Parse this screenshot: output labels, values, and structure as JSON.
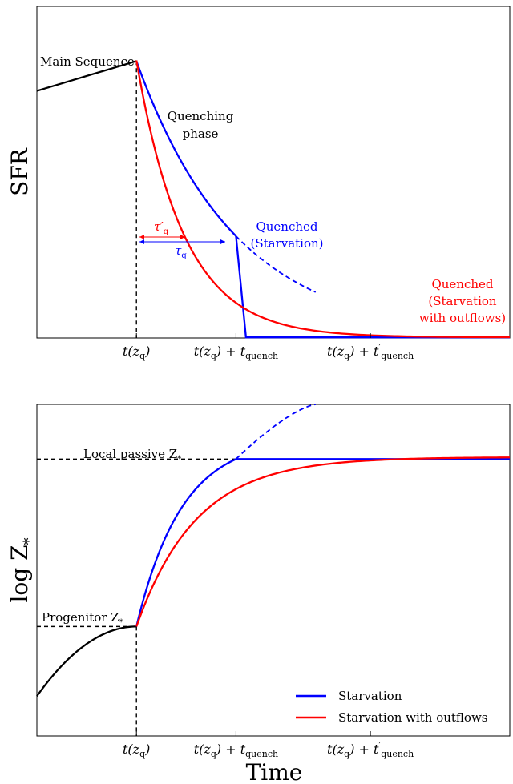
{
  "chart_data": [
    {
      "type": "line",
      "ylabel": "SFR",
      "xlabel": "",
      "x_ticks": [
        {
          "main": "t(z",
          "sub": "q",
          "post": ")",
          "extra": "",
          "extra_sub": "",
          "prime": false
        },
        {
          "main": "t(z",
          "sub": "q",
          "post": ") + t",
          "extra": "",
          "extra_sub": "quench",
          "prime": false
        },
        {
          "main": "t(z",
          "sub": "q",
          "post": ") + t",
          "extra": "′",
          "extra_sub": "quench",
          "prime": true
        }
      ],
      "annotations": {
        "main_sequence": "Main Sequence",
        "quenching_phase": [
          "Quenching",
          "phase"
        ],
        "quenched_starvation": [
          "Quenched",
          "(Starvation)"
        ],
        "quenched_outflows": [
          "Quenched",
          "(Starvation",
          "with outflows)"
        ],
        "tau_q_prime": "τ′",
        "tau_q": "τ",
        "tau_sub": "q"
      },
      "series": [
        {
          "name": "Starvation",
          "color": "#0000ff"
        },
        {
          "name": "Starvation with outflows",
          "color": "#ff0000"
        }
      ],
      "model": {
        "x_start": 0.0,
        "x_q": 1.0,
        "x_quench": 2.0,
        "x_quench_prime": 3.35,
        "x_end": 4.75,
        "sfr_start": 0.745,
        "sfr_q": 0.835,
        "tau_starvation": 1.0,
        "tau_outflows": 0.48,
        "dashed_end": 2.8,
        "drop_end": 2.1
      },
      "ylim": [
        0,
        1
      ],
      "xlim": [
        0,
        4.75
      ]
    },
    {
      "type": "line",
      "ylabel": "log Z",
      "ylabel_sub": "*",
      "xlabel": "Time",
      "x_ticks": [
        {
          "main": "t(z",
          "sub": "q",
          "post": ")",
          "extra": "",
          "extra_sub": "",
          "prime": false
        },
        {
          "main": "t(z",
          "sub": "q",
          "post": ") + t",
          "extra": "",
          "extra_sub": "quench",
          "prime": false
        },
        {
          "main": "t(z",
          "sub": "q",
          "post": ") + t",
          "extra": "′",
          "extra_sub": "quench",
          "prime": true
        }
      ],
      "annotations": {
        "local_passive": "Local passive Z",
        "progenitor": "Progenitor Z",
        "z_sub": "*"
      },
      "legend": {
        "position": "lower-right",
        "entries": [
          {
            "label": "Starvation",
            "color": "#0000ff"
          },
          {
            "label": "Starvation with outflows",
            "color": "#ff0000"
          }
        ]
      },
      "model": {
        "z_start": 0.12,
        "z_q": 0.33,
        "z_passive": 0.835,
        "z_dashed_end": 1.0,
        "rate_starvation": 1.0,
        "rate_outflows": 0.6
      },
      "ylim": [
        0,
        1
      ],
      "xlim": [
        0,
        4.75
      ]
    }
  ]
}
